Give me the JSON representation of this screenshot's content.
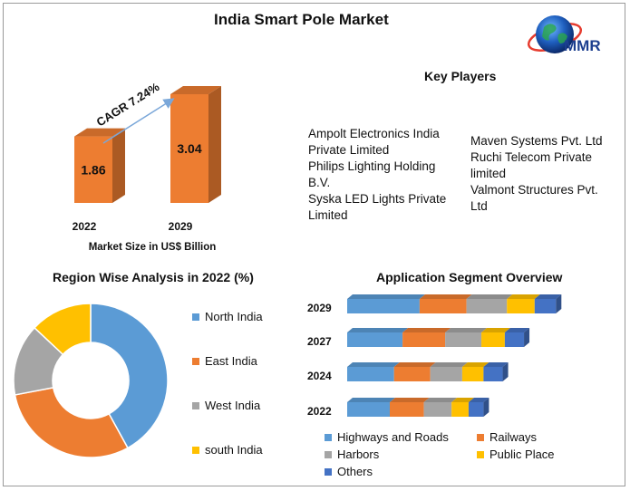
{
  "title": "India Smart Pole Market",
  "logo": {
    "text": "MMR"
  },
  "key_players": {
    "heading": "Key Players",
    "column1": [
      "Ampolt Electronics India",
      "Private Limited",
      "Philips Lighting Holding",
      "B.V.",
      "Syska LED Lights Private",
      "Limited"
    ],
    "column2": [
      "Maven Systems Pvt. Ltd",
      "Ruchi Telecom Private",
      "limited",
      "Valmont Structures Pvt.",
      "Ltd"
    ]
  },
  "colors": {
    "orange": "#ED7D31",
    "blue": "#5B9BD5",
    "gray": "#A5A5A5",
    "yellow": "#FFC000",
    "darkblue": "#4472C4"
  },
  "chart_data": [
    {
      "type": "bar",
      "categories": [
        "2022",
        "2029"
      ],
      "values": [
        1.86,
        3.04
      ],
      "value_labels": [
        "1.86",
        "3.04"
      ],
      "xlabel": "Market Size in US$ Billion",
      "annotation": "CAGR 7.24%",
      "ylim": [
        0,
        3.04
      ]
    },
    {
      "type": "pie",
      "variant": "donut",
      "title": "Region Wise Analysis in 2022 (%)",
      "labels": [
        "North India",
        "East India",
        "West India",
        "south India"
      ],
      "values": [
        42,
        30,
        15,
        13
      ],
      "colors": [
        "#5B9BD5",
        "#ED7D31",
        "#A5A5A5",
        "#FFC000"
      ],
      "legend": "right"
    },
    {
      "type": "bar",
      "orientation": "horizontal",
      "stacked": true,
      "title": "Application Segment Overview",
      "categories": [
        "2029",
        "2027",
        "2024",
        "2022"
      ],
      "series": [
        {
          "name": "Highways and Roads",
          "color": "#5B9BD5",
          "values": [
            34,
            26,
            22,
            20
          ]
        },
        {
          "name": "Railways",
          "color": "#ED7D31",
          "values": [
            22,
            20,
            17,
            16
          ]
        },
        {
          "name": "Harbors",
          "color": "#A5A5A5",
          "values": [
            19,
            17,
            15,
            13
          ]
        },
        {
          "name": "Public Place",
          "color": "#FFC000",
          "values": [
            13,
            11,
            10,
            8
          ]
        },
        {
          "name": "Others",
          "color": "#4472C4",
          "values": [
            10,
            9,
            9,
            7
          ]
        }
      ],
      "legend": "bottom"
    }
  ]
}
